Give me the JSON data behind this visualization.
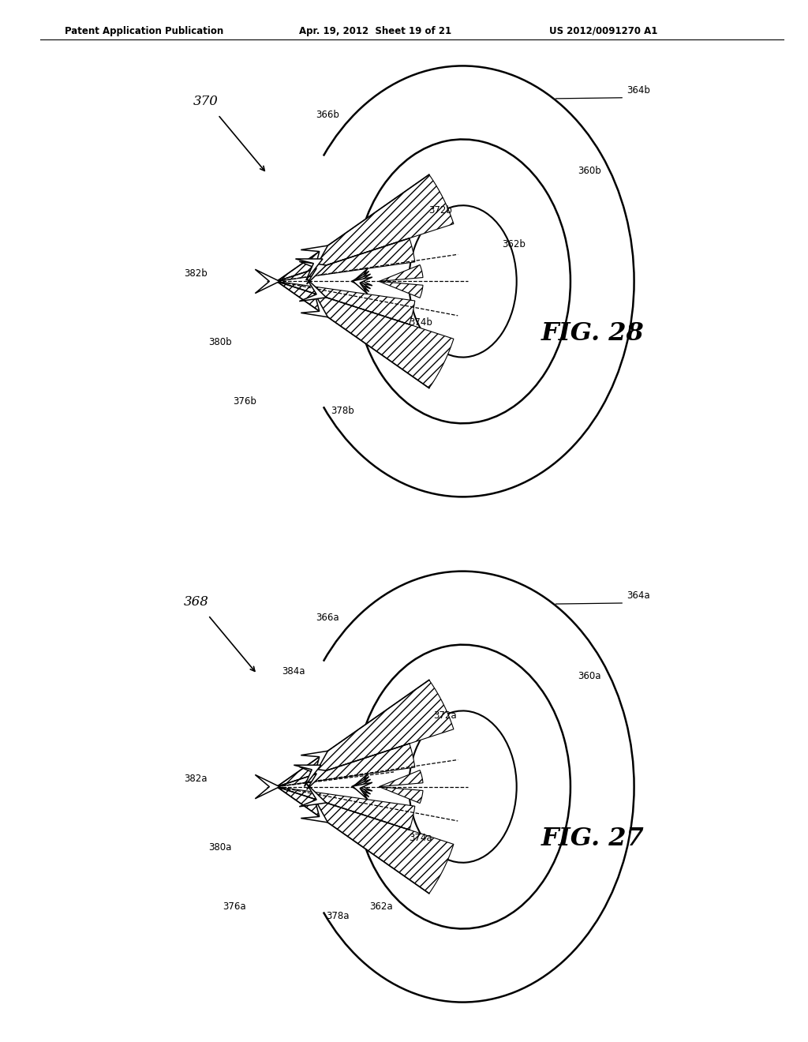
{
  "header_left": "Patent Application Publication",
  "header_mid": "Apr. 19, 2012  Sheet 19 of 21",
  "header_right": "US 2012/0091270 A1",
  "fig28_label": "FIG. 28",
  "fig27_label": "FIG. 27",
  "bg_color": "#ffffff"
}
